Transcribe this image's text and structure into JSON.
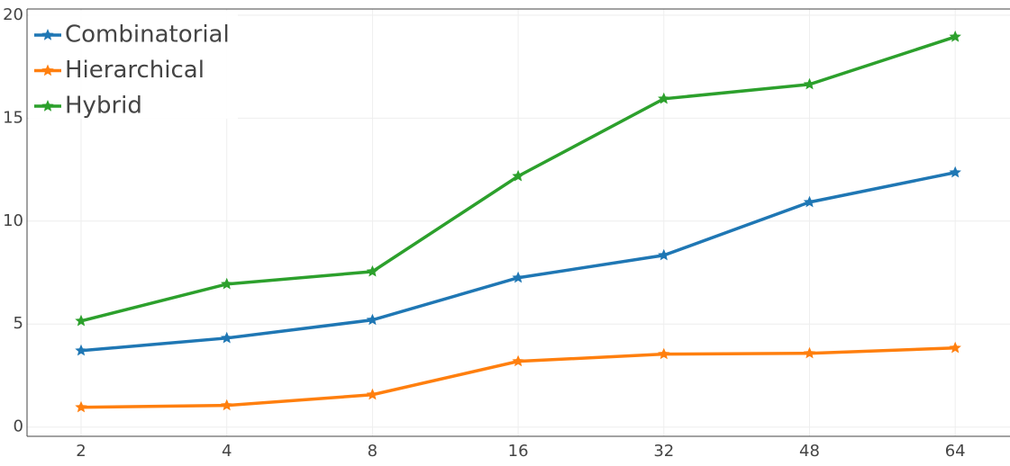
{
  "chart_data": {
    "type": "line",
    "categories": [
      "2",
      "4",
      "8",
      "16",
      "32",
      "48",
      "64"
    ],
    "series": [
      {
        "name": "Combinatorial",
        "color": "#1f77b4",
        "values": [
          3.71,
          4.32,
          5.2,
          7.25,
          8.34,
          10.92,
          12.36
        ]
      },
      {
        "name": "Hierarchical",
        "color": "#ff7f0e",
        "values": [
          0.96,
          1.05,
          1.57,
          3.19,
          3.54,
          3.58,
          3.84
        ]
      },
      {
        "name": "Hybrid",
        "color": "#2ca02c",
        "values": [
          5.15,
          6.94,
          7.55,
          12.18,
          15.94,
          16.64,
          18.95
        ]
      }
    ],
    "ylim": [
      -0.45,
      20.3
    ],
    "yticks": [
      0,
      5,
      10,
      15,
      20
    ],
    "grid": true,
    "legend": "top-left",
    "marker": "star"
  }
}
